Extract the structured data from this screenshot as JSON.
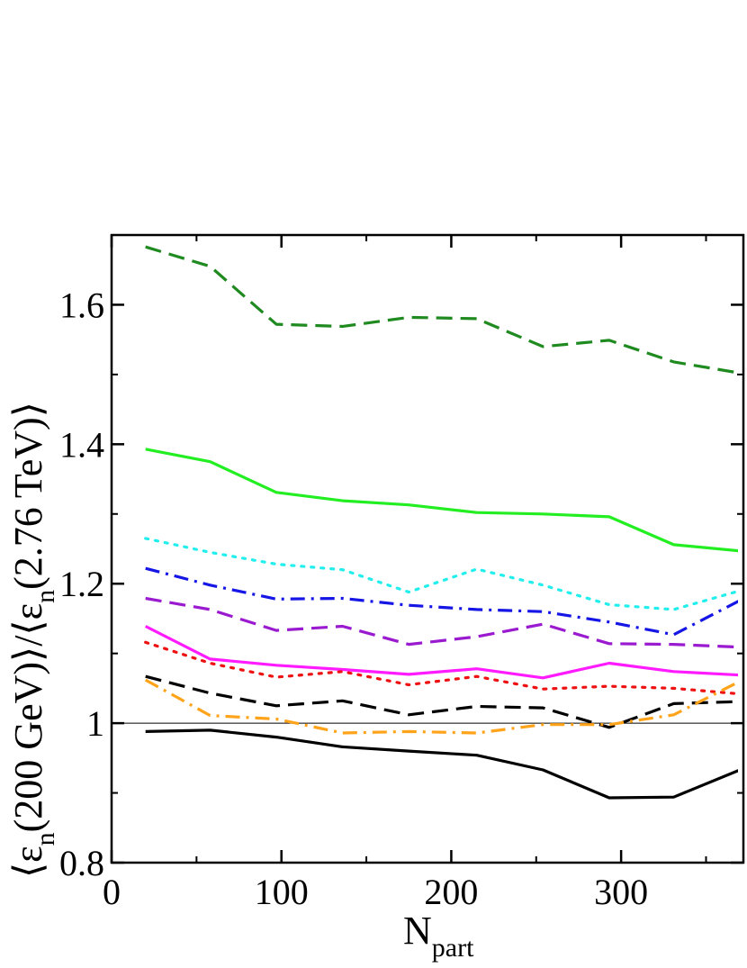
{
  "chart_data": {
    "type": "line",
    "title": "",
    "xlabel": {
      "main": "N",
      "sub": "part"
    },
    "ylabel": {
      "lead": "⟨ε",
      "sub1": "n",
      "mid": "(200 GeV)⟩/⟨ε",
      "sub2": "n",
      "tail": "(2.76 TeV)⟩"
    },
    "xlim": [
      0,
      372
    ],
    "ylim": [
      0.8,
      1.7
    ],
    "x_ticks": [
      {
        "value": 0,
        "label": "0"
      },
      {
        "value": 100,
        "label": "100"
      },
      {
        "value": 200,
        "label": "200"
      },
      {
        "value": 300,
        "label": "300"
      }
    ],
    "y_ticks": [
      {
        "value": 0.8,
        "label": "0.8"
      },
      {
        "value": 1.0,
        "label": "1"
      },
      {
        "value": 1.2,
        "label": "1.2"
      },
      {
        "value": 1.4,
        "label": "1.4"
      },
      {
        "value": 1.6,
        "label": "1.6"
      }
    ],
    "x_minor_step": 50,
    "y_minor_step": 0.1,
    "reference_line": {
      "y": 1.0,
      "color": "#000000"
    },
    "grid": false,
    "series": [
      {
        "name": "dark-green-dashed",
        "color": "#1f8a1f",
        "style": "dashed",
        "x": [
          20,
          58,
          97,
          136,
          175,
          215,
          254,
          293,
          331,
          370
        ],
        "values": [
          1.683,
          1.655,
          1.572,
          1.569,
          1.582,
          1.58,
          1.54,
          1.549,
          1.518,
          1.502
        ]
      },
      {
        "name": "green-solid",
        "color": "#22ee22",
        "style": "solid",
        "x": [
          20,
          58,
          97,
          136,
          175,
          215,
          254,
          293,
          331,
          370
        ],
        "values": [
          1.393,
          1.375,
          1.331,
          1.319,
          1.313,
          1.302,
          1.3,
          1.296,
          1.256,
          1.247
        ]
      },
      {
        "name": "cyan-dotted",
        "color": "#22eeee",
        "style": "dotted",
        "x": [
          20,
          58,
          97,
          136,
          175,
          215,
          254,
          293,
          331,
          370
        ],
        "values": [
          1.265,
          1.245,
          1.228,
          1.22,
          1.188,
          1.221,
          1.198,
          1.17,
          1.163,
          1.19
        ]
      },
      {
        "name": "blue-dashdot",
        "color": "#1515e6",
        "style": "dashdot",
        "x": [
          20,
          58,
          97,
          136,
          175,
          215,
          254,
          293,
          331,
          370
        ],
        "values": [
          1.222,
          1.198,
          1.178,
          1.179,
          1.169,
          1.163,
          1.16,
          1.145,
          1.127,
          1.176
        ]
      },
      {
        "name": "purple-dashed",
        "color": "#9a1ad0",
        "style": "dashed",
        "x": [
          20,
          58,
          97,
          136,
          175,
          215,
          254,
          293,
          331,
          370
        ],
        "values": [
          1.179,
          1.163,
          1.133,
          1.139,
          1.113,
          1.124,
          1.142,
          1.114,
          1.113,
          1.109
        ]
      },
      {
        "name": "magenta-solid",
        "color": "#ff1aff",
        "style": "solid",
        "x": [
          20,
          58,
          97,
          136,
          175,
          215,
          254,
          293,
          331,
          370
        ],
        "values": [
          1.139,
          1.092,
          1.083,
          1.077,
          1.07,
          1.078,
          1.065,
          1.086,
          1.074,
          1.069
        ]
      },
      {
        "name": "red-dotted",
        "color": "#ee1111",
        "style": "dotted",
        "x": [
          20,
          58,
          97,
          136,
          175,
          215,
          254,
          293,
          331,
          370
        ],
        "values": [
          1.116,
          1.086,
          1.066,
          1.074,
          1.055,
          1.067,
          1.049,
          1.053,
          1.05,
          1.042
        ]
      },
      {
        "name": "black-dashed",
        "color": "#000000",
        "style": "dashed",
        "x": [
          20,
          58,
          97,
          136,
          175,
          215,
          254,
          293,
          331,
          370
        ],
        "values": [
          1.067,
          1.043,
          1.025,
          1.032,
          1.012,
          1.024,
          1.022,
          0.994,
          1.028,
          1.031
        ]
      },
      {
        "name": "orange-dashdot",
        "color": "#ffa31a",
        "style": "dashdot",
        "x": [
          20,
          58,
          97,
          136,
          175,
          215,
          254,
          293,
          331,
          370
        ],
        "values": [
          1.062,
          1.011,
          1.006,
          0.986,
          0.988,
          0.986,
          0.998,
          0.998,
          1.012,
          1.06
        ]
      },
      {
        "name": "black-solid",
        "color": "#000000",
        "style": "solid",
        "x": [
          20,
          58,
          97,
          136,
          175,
          215,
          254,
          293,
          331,
          370
        ],
        "values": [
          0.988,
          0.99,
          0.98,
          0.966,
          0.96,
          0.954,
          0.933,
          0.893,
          0.894,
          0.933
        ]
      }
    ]
  }
}
